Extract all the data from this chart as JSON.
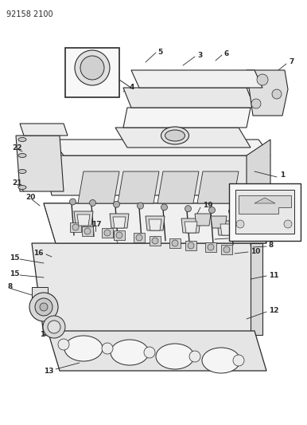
{
  "title": "92158 2100",
  "bg_color": "#ffffff",
  "line_color": "#2a2a2a",
  "fig_width": 3.86,
  "fig_height": 5.33,
  "dpi": 100
}
